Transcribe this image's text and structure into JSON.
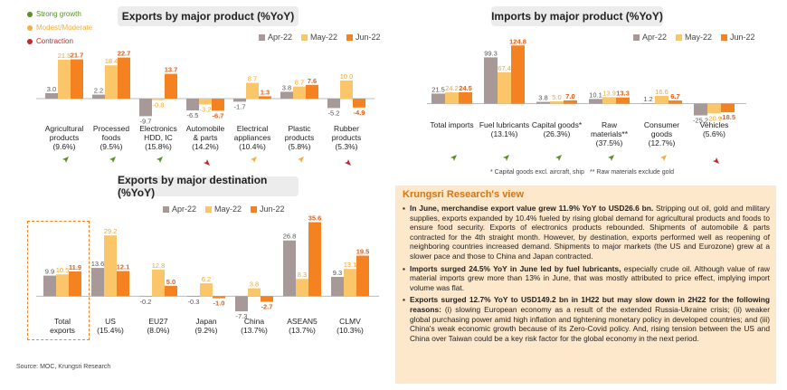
{
  "key": {
    "items": [
      {
        "label": "Strong growth",
        "color": "#5a8f29"
      },
      {
        "label": "Modest/Moderate",
        "color": "#f5b041"
      },
      {
        "label": "Contraction",
        "color": "#c0282b"
      }
    ]
  },
  "legend": [
    "Apr-22",
    "May-22",
    "Jun-22"
  ],
  "colors": {
    "apr": "#a89999",
    "may": "#fbc66a",
    "jun": "#f58220",
    "strong": "#5a8f29",
    "modest": "#f5b041",
    "contraction": "#c0282b"
  },
  "chart_data": [
    {
      "type": "bar",
      "title": "Exports by major product (%YoY)",
      "categories": [
        "Agricultural\nproducts\n(9.6%)",
        "Processed\nfoods\n(9.5%)",
        "Electronics\nHDD, IC\n(15.8%)",
        "Automobile\n& parts\n(14.2%)",
        "Electrical\nappliances\n(10.4%)",
        "Plastic\nproducts\n(5.8%)",
        "Rubber\nproducts\n(5.3%)"
      ],
      "series": [
        {
          "name": "Apr-22",
          "values": [
            3.0,
            2.2,
            -9.7,
            -6.5,
            -1.7,
            3.8,
            -5.2
          ]
        },
        {
          "name": "May-22",
          "values": [
            21.5,
            18.4,
            -0.8,
            -3.2,
            8.7,
            6.7,
            10.0
          ]
        },
        {
          "name": "Jun-22",
          "values": [
            21.7,
            22.7,
            13.7,
            -6.7,
            1.3,
            7.6,
            -4.9
          ]
        }
      ],
      "trend": [
        "up",
        "up",
        "up",
        "down",
        "modest",
        "modest",
        "down"
      ],
      "ylim": [
        -12,
        27
      ]
    },
    {
      "type": "bar",
      "title": "Imports by major product (%YoY)",
      "categories": [
        "Total imports",
        "Fuel lubricants\n(13.1%)",
        "Capital goods*\n(26.3%)",
        "Raw\nmaterials**\n(37.5%)",
        "Consumer\ngoods\n(12.7%)",
        "Vehicles\n(5.6%)"
      ],
      "series": [
        {
          "name": "Apr-22",
          "values": [
            21.5,
            99.3,
            3.8,
            10.1,
            1.2,
            -25.2
          ]
        },
        {
          "name": "May-22",
          "values": [
            24.2,
            67.4,
            5.0,
            13.9,
            16.6,
            -20.9
          ]
        },
        {
          "name": "Jun-22",
          "values": [
            24.5,
            124.8,
            7.0,
            13.3,
            6.7,
            -18.5
          ]
        }
      ],
      "trend": [
        "up",
        "up",
        "up",
        "up",
        "modest",
        "down"
      ],
      "ylim": [
        -30,
        135
      ]
    },
    {
      "type": "bar",
      "title": "Exports by major destination (%YoY)",
      "categories": [
        "Total\nexports",
        "US\n(15.4%)",
        "EU27\n(8.0%)",
        "Japan\n(9.2%)",
        "China\n(13.7%)",
        "ASEAN5\n(13.7%)",
        "CLMV\n(10.3%)"
      ],
      "series": [
        {
          "name": "Apr-22",
          "values": [
            9.9,
            13.6,
            -0.2,
            -0.3,
            -7.3,
            26.8,
            9.3
          ]
        },
        {
          "name": "May-22",
          "values": [
            10.5,
            29.2,
            12.8,
            6.2,
            3.8,
            8.3,
            13.1
          ]
        },
        {
          "name": "Jun-22",
          "values": [
            11.9,
            12.1,
            5.0,
            -1.0,
            -2.7,
            35.6,
            19.5
          ]
        }
      ],
      "ylim": [
        -9,
        38
      ]
    }
  ],
  "import_notes": {
    "capital": "* Capital goods excl. aircraft, ship",
    "raw": "** Raw materials exclude gold"
  },
  "view": {
    "title": "Krungsri Research's view",
    "p1_bold": "In June, merchandise export value grew 11.9% YoY to USD26.6 bn.",
    "p1_rest": " Stripping out oil, gold and military supplies, exports expanded by 10.4% fueled by rising global demand for agricultural products and foods to ensure food security. Exports of electronics products rebounded. Shipments of automobile & parts contracted for the 4th straight month. However, by destination, exports performed well as reopening of neighboring countries increased demand. Shipments to major markets (the US and Eurozone) grew at a slower pace and those to China and Japan contracted.",
    "p2_bold": "Imports surged 24.5% YoY in June led by fuel lubricants,",
    "p2_rest": " especially crude oil. Although value of raw material imports grew more than 13% in June, that was mostly attributed to price effect, implying import volume was flat.",
    "p3_bold": "Exports surged 12.7% YoY to USD149.2 bn in 1H22 but may slow down in 2H22 for the following reasons:",
    "p3_rest": " (i) slowing European economy as a result of the extended Russia-Ukraine crisis; (ii) weaker global purchasing power amid high inflation and tightening monetary policy in developed countries; and (iii) China's weak economic growth because of its Zero-Covid policy. And, rising tension between the US and China over Taiwan could be a key risk factor for the global economy in the next period."
  },
  "source": "Source: MOC, Krungsri Research"
}
